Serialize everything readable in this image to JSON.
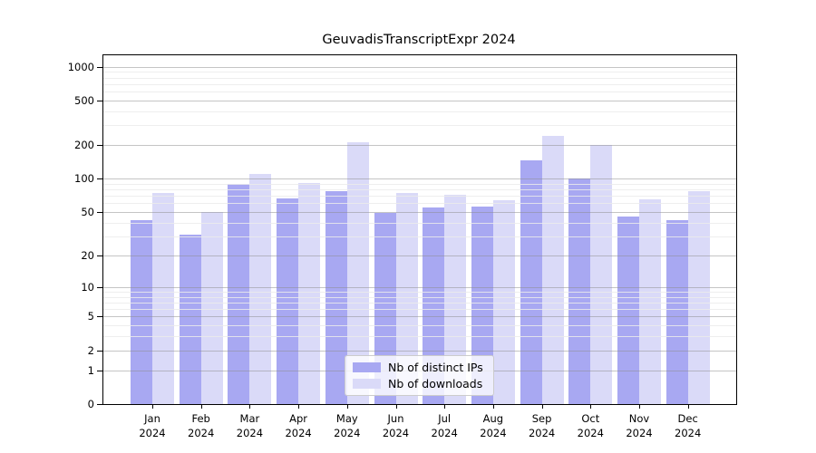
{
  "chart_data": {
    "type": "bar",
    "title": "GeuvadisTranscriptExpr 2024",
    "categories": [
      "Jan 2024",
      "Feb 2024",
      "Mar 2024",
      "Apr 2024",
      "May 2024",
      "Jun 2024",
      "Jul 2024",
      "Aug 2024",
      "Sep 2024",
      "Oct 2024",
      "Nov 2024",
      "Dec 2024"
    ],
    "series": [
      {
        "name": "Nb of distinct IPs",
        "color": "#a8a8f2",
        "values": [
          42,
          31,
          90,
          66,
          78,
          49,
          55,
          56,
          145,
          100,
          46,
          42
        ]
      },
      {
        "name": "Nb of downloads",
        "color": "#dadaf8",
        "values": [
          75,
          50,
          110,
          92,
          214,
          75,
          72,
          64,
          240,
          200,
          65,
          78
        ]
      }
    ],
    "y_axis": {
      "scale": "log1p",
      "major_ticks": [
        0,
        1,
        2,
        5,
        10,
        20,
        50,
        100,
        200,
        500,
        1000
      ],
      "minor_ticks": [
        3,
        4,
        6,
        7,
        8,
        9,
        30,
        40,
        60,
        70,
        80,
        90,
        300,
        400,
        600,
        700,
        800,
        900
      ],
      "ylim": [
        0,
        1270
      ]
    },
    "grid": {
      "major_color": "rgba(140,140,140,0.50)",
      "minor_color": "rgba(235,235,235,0.85)"
    },
    "legend": {
      "position": "lower-center"
    }
  }
}
